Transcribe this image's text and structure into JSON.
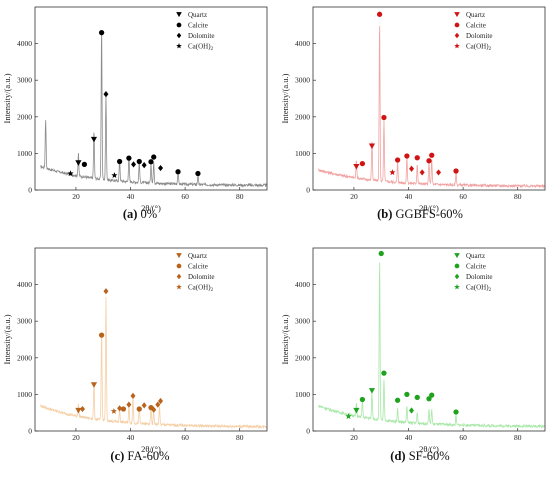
{
  "chart_data": [
    {
      "type": "line",
      "caption_label": "(a)",
      "caption_text": "0%",
      "color": "#8c8c8c",
      "marker_color": "#000000",
      "xlabel": "2θ/(°)",
      "ylabel": "Intensity/(a.u.)",
      "xlim": [
        5,
        90
      ],
      "ylim": [
        0,
        5000
      ],
      "xticks": [
        20,
        40,
        60,
        80
      ],
      "yticks": [
        0,
        1000,
        2000,
        3000,
        4000
      ],
      "legend": [
        {
          "marker": "triangle",
          "label": "Quartz"
        },
        {
          "marker": "circle",
          "label": "Calcite"
        },
        {
          "marker": "diamond",
          "label": "Dolomite"
        },
        {
          "marker": "star",
          "label": "Ca(OH)",
          "sub": "2"
        }
      ],
      "baseline": {
        "start": 700,
        "end": 120
      },
      "peaks": [
        [
          8.9,
          1350
        ],
        [
          20.9,
          600
        ],
        [
          26.6,
          1300
        ],
        [
          29.4,
          4200
        ],
        [
          31.0,
          2350
        ],
        [
          36.0,
          600
        ],
        [
          39.4,
          700
        ],
        [
          43.2,
          600
        ],
        [
          47.5,
          550
        ],
        [
          48.5,
          600
        ],
        [
          57.4,
          350
        ],
        [
          64.7,
          250
        ]
      ],
      "markers": [
        {
          "marker": "triangle",
          "x": 20.9,
          "y": 740
        },
        {
          "marker": "circle",
          "x": 23.1,
          "y": 700
        },
        {
          "marker": "star",
          "x": 18.0,
          "y": 450
        },
        {
          "marker": "triangle",
          "x": 26.6,
          "y": 1380
        },
        {
          "marker": "circle",
          "x": 29.4,
          "y": 4300
        },
        {
          "marker": "diamond",
          "x": 31.0,
          "y": 2620
        },
        {
          "marker": "star",
          "x": 34.1,
          "y": 400
        },
        {
          "marker": "circle",
          "x": 36.0,
          "y": 780
        },
        {
          "marker": "circle",
          "x": 39.4,
          "y": 870
        },
        {
          "marker": "diamond",
          "x": 41.1,
          "y": 700
        },
        {
          "marker": "circle",
          "x": 43.2,
          "y": 780
        },
        {
          "marker": "diamond",
          "x": 45.0,
          "y": 680
        },
        {
          "marker": "circle",
          "x": 47.5,
          "y": 770
        },
        {
          "marker": "circle",
          "x": 48.5,
          "y": 900
        },
        {
          "marker": "diamond",
          "x": 51.0,
          "y": 600
        },
        {
          "marker": "circle",
          "x": 57.4,
          "y": 500
        },
        {
          "marker": "circle",
          "x": 64.7,
          "y": 450
        }
      ]
    },
    {
      "type": "line",
      "caption_label": "(b)",
      "caption_text": "GGBFS-60%",
      "color": "#f2a3a3",
      "marker_color": "#d01414",
      "xlabel": "2θ/(°)",
      "ylabel": "Intensity/(a.u.)",
      "xlim": [
        5,
        90
      ],
      "ylim": [
        0,
        5000
      ],
      "xticks": [
        20,
        40,
        60,
        80
      ],
      "yticks": [
        0,
        1000,
        2000,
        3000,
        4000
      ],
      "legend": [
        {
          "marker": "triangle",
          "label": "Quartz"
        },
        {
          "marker": "circle",
          "label": "Calcite"
        },
        {
          "marker": "diamond",
          "label": "Dolomite"
        },
        {
          "marker": "star",
          "label": "Ca(OH)",
          "sub": "2"
        }
      ],
      "baseline": {
        "start": 600,
        "end": 100
      },
      "peaks": [
        [
          20.9,
          500
        ],
        [
          26.6,
          1100
        ],
        [
          29.4,
          4400
        ],
        [
          31.0,
          1650
        ],
        [
          36.0,
          550
        ],
        [
          39.4,
          700
        ],
        [
          43.2,
          550
        ],
        [
          47.5,
          600
        ],
        [
          48.5,
          700
        ],
        [
          57.4,
          350
        ]
      ],
      "markers": [
        {
          "marker": "triangle",
          "x": 20.9,
          "y": 640
        },
        {
          "marker": "circle",
          "x": 23.1,
          "y": 720
        },
        {
          "marker": "triangle",
          "x": 26.6,
          "y": 1200
        },
        {
          "marker": "circle",
          "x": 29.4,
          "y": 4800
        },
        {
          "marker": "circle",
          "x": 31.0,
          "y": 1980
        },
        {
          "marker": "star",
          "x": 34.1,
          "y": 480
        },
        {
          "marker": "circle",
          "x": 36.0,
          "y": 820
        },
        {
          "marker": "circle",
          "x": 39.4,
          "y": 930
        },
        {
          "marker": "diamond",
          "x": 41.1,
          "y": 580
        },
        {
          "marker": "circle",
          "x": 43.2,
          "y": 880
        },
        {
          "marker": "diamond",
          "x": 45.0,
          "y": 480
        },
        {
          "marker": "circle",
          "x": 47.5,
          "y": 800
        },
        {
          "marker": "circle",
          "x": 48.5,
          "y": 950
        },
        {
          "marker": "diamond",
          "x": 51.0,
          "y": 480
        },
        {
          "marker": "circle",
          "x": 57.4,
          "y": 520
        }
      ]
    },
    {
      "type": "line",
      "caption_label": "(c)",
      "caption_text": "FA-60%",
      "color": "#f5cfa6",
      "marker_color": "#b8621b",
      "xlabel": "2θ/(°)",
      "ylabel": "Intensity/(a.u.)",
      "xlim": [
        5,
        90
      ],
      "ylim": [
        0,
        5000
      ],
      "xticks": [
        20,
        40,
        60,
        80
      ],
      "yticks": [
        0,
        1000,
        2000,
        3000,
        4000
      ],
      "legend": [
        {
          "marker": "triangle",
          "label": "Quartz"
        },
        {
          "marker": "circle",
          "label": "Calcite"
        },
        {
          "marker": "diamond",
          "label": "Dolomite"
        },
        {
          "marker": "star",
          "label": "Ca(OH)",
          "sub": "2"
        }
      ],
      "baseline": {
        "start": 750,
        "end": 110
      },
      "peaks": [
        [
          20.9,
          350
        ],
        [
          26.6,
          1000
        ],
        [
          29.4,
          2450
        ],
        [
          31.0,
          3350
        ],
        [
          36.0,
          350
        ],
        [
          39.4,
          450
        ],
        [
          40.9,
          700
        ],
        [
          43.2,
          450
        ],
        [
          47.5,
          450
        ],
        [
          48.5,
          350
        ],
        [
          50.6,
          500
        ]
      ],
      "markers": [
        {
          "marker": "triangle",
          "x": 20.9,
          "y": 560
        },
        {
          "marker": "diamond",
          "x": 22.4,
          "y": 600
        },
        {
          "marker": "triangle",
          "x": 26.6,
          "y": 1260
        },
        {
          "marker": "circle",
          "x": 29.4,
          "y": 2620
        },
        {
          "marker": "diamond",
          "x": 31.0,
          "y": 3820
        },
        {
          "marker": "star",
          "x": 33.9,
          "y": 540
        },
        {
          "marker": "diamond",
          "x": 36.0,
          "y": 620
        },
        {
          "marker": "circle",
          "x": 37.4,
          "y": 600
        },
        {
          "marker": "diamond",
          "x": 39.4,
          "y": 720
        },
        {
          "marker": "diamond",
          "x": 40.9,
          "y": 960
        },
        {
          "marker": "circle",
          "x": 43.2,
          "y": 600
        },
        {
          "marker": "diamond",
          "x": 45.0,
          "y": 700
        },
        {
          "marker": "circle",
          "x": 47.5,
          "y": 640
        },
        {
          "marker": "diamond",
          "x": 48.5,
          "y": 580
        },
        {
          "marker": "diamond",
          "x": 50.0,
          "y": 720
        },
        {
          "marker": "diamond",
          "x": 51.0,
          "y": 820
        }
      ]
    },
    {
      "type": "line",
      "caption_label": "(d)",
      "caption_text": "SF-60%",
      "color": "#a8e8a8",
      "marker_color": "#1fa31f",
      "xlabel": "2θ/(°)",
      "ylabel": "Intensity/(a.u.)",
      "xlim": [
        5,
        90
      ],
      "ylim": [
        0,
        5000
      ],
      "xticks": [
        20,
        40,
        60,
        80
      ],
      "yticks": [
        0,
        1000,
        2000,
        3000,
        4000
      ],
      "legend": [
        {
          "marker": "triangle",
          "label": "Quartz"
        },
        {
          "marker": "circle",
          "label": "Calcite"
        },
        {
          "marker": "diamond",
          "label": "Dolomite"
        },
        {
          "marker": "star",
          "label": "Ca(OH)",
          "sub": "2"
        }
      ],
      "baseline": {
        "start": 750,
        "end": 120
      },
      "peaks": [
        [
          20.9,
          350
        ],
        [
          23.1,
          450
        ],
        [
          26.6,
          700
        ],
        [
          29.4,
          4400
        ],
        [
          31.0,
          1100
        ],
        [
          36.0,
          350
        ],
        [
          39.4,
          450
        ],
        [
          43.2,
          300
        ],
        [
          47.5,
          400
        ],
        [
          48.5,
          400
        ],
        [
          57.4,
          250
        ]
      ],
      "markers": [
        {
          "marker": "star",
          "x": 18.0,
          "y": 400
        },
        {
          "marker": "triangle",
          "x": 20.9,
          "y": 560
        },
        {
          "marker": "circle",
          "x": 23.1,
          "y": 860
        },
        {
          "marker": "triangle",
          "x": 26.6,
          "y": 1100
        },
        {
          "marker": "circle",
          "x": 30.0,
          "y": 4850
        },
        {
          "marker": "circle",
          "x": 31.0,
          "y": 1580
        },
        {
          "marker": "circle",
          "x": 36.0,
          "y": 840
        },
        {
          "marker": "circle",
          "x": 39.4,
          "y": 1000
        },
        {
          "marker": "diamond",
          "x": 41.1,
          "y": 560
        },
        {
          "marker": "circle",
          "x": 43.2,
          "y": 920
        },
        {
          "marker": "circle",
          "x": 47.5,
          "y": 880
        },
        {
          "marker": "circle",
          "x": 48.5,
          "y": 980
        },
        {
          "marker": "circle",
          "x": 57.4,
          "y": 520
        }
      ]
    }
  ]
}
